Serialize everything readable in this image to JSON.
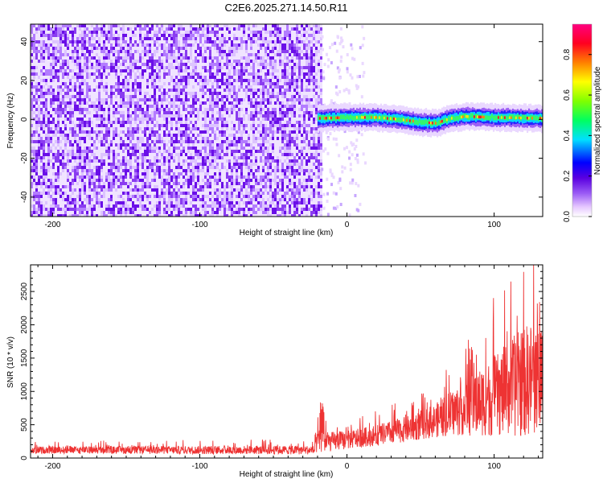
{
  "title": "C2E6.2025.271.14.50.R11",
  "chart_data": [
    {
      "type": "heatmap",
      "name": "spectrogram",
      "xlabel": "Height of straight line (km)",
      "ylabel": "Frequency (Hz)",
      "xlim": [
        -215,
        133
      ],
      "ylim": [
        -50,
        49
      ],
      "xticks": [
        -200,
        -100,
        0,
        100
      ],
      "yticks": [
        -40,
        -20,
        0,
        20,
        40
      ],
      "noise_region_end_km": -18,
      "signal_track": {
        "start_km": -20,
        "center_hz": [
          {
            "x": -20,
            "y": 0.5
          },
          {
            "x": 0,
            "y": 1
          },
          {
            "x": 20,
            "y": 1
          },
          {
            "x": 35,
            "y": 0
          },
          {
            "x": 50,
            "y": -1.5
          },
          {
            "x": 60,
            "y": -2
          },
          {
            "x": 70,
            "y": 0.5
          },
          {
            "x": 80,
            "y": 1.5
          },
          {
            "x": 100,
            "y": 1
          },
          {
            "x": 133,
            "y": 0.5
          }
        ]
      },
      "colorbar": {
        "label": "Normalized spectral amplitude",
        "range": [
          0,
          0.95
        ],
        "ticks": [
          "0.0",
          "0.2",
          "0.4",
          "0.6",
          "0.8"
        ],
        "tick_values": [
          0,
          0.2,
          0.4,
          0.6,
          0.8
        ]
      }
    },
    {
      "type": "line",
      "name": "snr",
      "xlabel": "Height of straight line (km)",
      "ylabel": "SNR (10 * v/v)",
      "xlim": [
        -215,
        133
      ],
      "ylim": [
        0,
        2900
      ],
      "xticks": [
        -200,
        -100,
        0,
        100
      ],
      "yticks": [
        0,
        500,
        1000,
        1500,
        2000,
        2500
      ],
      "series": [
        {
          "name": "SNR",
          "color": "#ee3333",
          "envelope": [
            {
              "x": -215,
              "base": 120,
              "amp": 90
            },
            {
              "x": -22,
              "base": 120,
              "amp": 110
            },
            {
              "x": -20,
              "base": 260,
              "amp": 300
            },
            {
              "x": -17,
              "base": 230,
              "amp": 250
            },
            {
              "x": 0,
              "base": 270,
              "amp": 230
            },
            {
              "x": 20,
              "base": 340,
              "amp": 260
            },
            {
              "x": 40,
              "base": 430,
              "amp": 320
            },
            {
              "x": 60,
              "base": 560,
              "amp": 420
            },
            {
              "x": 80,
              "base": 760,
              "amp": 700
            },
            {
              "x": 100,
              "base": 920,
              "amp": 1000
            },
            {
              "x": 120,
              "base": 1150,
              "amp": 1400
            },
            {
              "x": 133,
              "base": 1250,
              "amp": 1450
            }
          ]
        }
      ]
    }
  ]
}
